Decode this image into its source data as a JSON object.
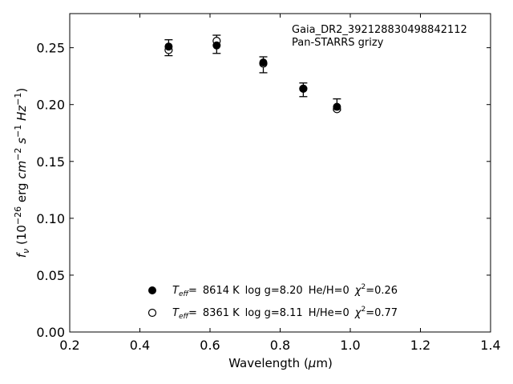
{
  "chart_data": {
    "type": "scatter",
    "xlabel": "Wavelength (μm)",
    "ylabel": "f_ν (10^-26 erg cm^-2 s^-1 Hz^-1)",
    "xlim": [
      0.2,
      1.4
    ],
    "ylim": [
      0.0,
      0.28
    ],
    "x_ticks": [
      "0.2",
      "0.4",
      "0.6",
      "0.8",
      "1.0",
      "1.2",
      "1.4"
    ],
    "y_ticks": [
      "0.00",
      "0.05",
      "0.10",
      "0.15",
      "0.20",
      "0.25"
    ],
    "grid": false,
    "annotations": [
      "Gaia_DR2_392128830498842112",
      "Pan-STARRS grizy"
    ],
    "observed": {
      "x": [
        0.482,
        0.619,
        0.752,
        0.866,
        0.962
      ],
      "y": [
        0.25,
        0.253,
        0.235,
        0.213,
        0.2
      ],
      "yerr": [
        0.007,
        0.008,
        0.007,
        0.006,
        0.005
      ]
    },
    "series": [
      {
        "name": "Teff= 8614 K log g=8.20 He/H=0 χ2=0.26",
        "marker": "filled-circle",
        "x": [
          0.482,
          0.619,
          0.752,
          0.866,
          0.962
        ],
        "y": [
          0.251,
          0.252,
          0.237,
          0.214,
          0.198
        ]
      },
      {
        "name": "Teff= 8361 K log g=8.11 H/He=0 χ2=0.77",
        "marker": "open-circle",
        "x": [
          0.482,
          0.619,
          0.752,
          0.866,
          0.962
        ],
        "y": [
          0.248,
          0.256,
          0.236,
          0.214,
          0.196
        ]
      }
    ],
    "legend": [
      {
        "teff_label": "T",
        "teff_sub": "eff",
        "eq": "=",
        "teff": "8614 K",
        "logg": "log g=8.20",
        "comp": "He/H=0",
        "chi_label": "χ",
        "chi_sup": "2",
        "chi": "=0.26",
        "marker": "filled-circle"
      },
      {
        "teff_label": "T",
        "teff_sub": "eff",
        "eq": "=",
        "teff": "8361 K",
        "logg": "log g=8.11",
        "comp": "H/He=0",
        "chi_label": "χ",
        "chi_sup": "2",
        "chi": "=0.77",
        "marker": "open-circle"
      }
    ],
    "legend_position": "lower-center"
  }
}
